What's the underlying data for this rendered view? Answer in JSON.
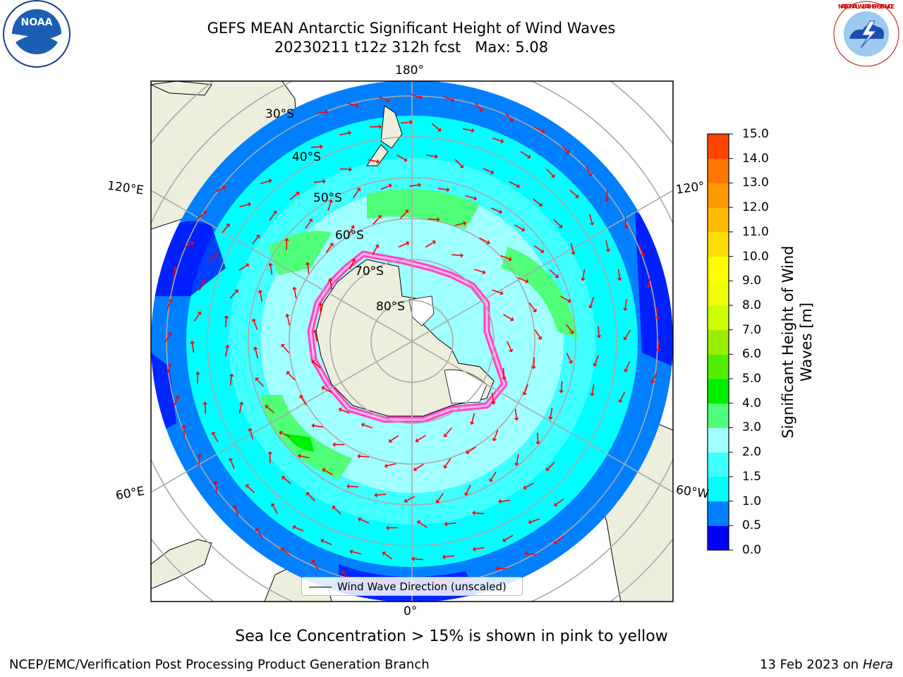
{
  "title": {
    "line1": "GEFS MEAN Antarctic Significant Height of Wind Waves",
    "line2": "20230211 t12z 312h fcst   Max: 5.08"
  },
  "map": {
    "projection": "south-polar-stereographic",
    "lon_labels": {
      "top": "180°",
      "bottom": "0°",
      "left_upper": "120°E",
      "left_lower": "60°E",
      "right_upper": "120°",
      "right_lower": "60°W"
    },
    "lat_labels": [
      "30°S",
      "40°S",
      "50°S",
      "60°S",
      "70°S",
      "80°S"
    ],
    "land_color": "#eeeedd",
    "arrow_color": "#ff0000"
  },
  "legend": {
    "label": "Wind Wave Direction (unscaled)"
  },
  "colorbar": {
    "title": "Significant Height of Wind Waves [m]",
    "ticks": [
      "0.0",
      "0.5",
      "1.0",
      "1.5",
      "2.0",
      "3.0",
      "4.0",
      "5.0",
      "6.0",
      "7.0",
      "8.0",
      "9.0",
      "10.0",
      "11.0",
      "12.0",
      "13.0",
      "14.0",
      "15.0"
    ],
    "colors": [
      "#0000ff",
      "#0080ff",
      "#00ffff",
      "#40ffff",
      "#a0ffff",
      "#50ff78",
      "#00ee00",
      "#50ee00",
      "#99ee00",
      "#ccff00",
      "#eeff00",
      "#ffff00",
      "#ffdd00",
      "#ffbb00",
      "#ff9900",
      "#ff7700",
      "#ff4400",
      "#ff0000"
    ]
  },
  "note": "Sea Ice Concentration > 15% is shown in pink to yellow",
  "footer": {
    "credit": "NCEP/EMC/Verification Post Processing Product Generation Branch",
    "date": "13 Feb 2023 on",
    "machine": "Hera"
  },
  "logos": {
    "noaa": "NOAA",
    "nws": "NATIONAL WEATHER SERVICE"
  }
}
